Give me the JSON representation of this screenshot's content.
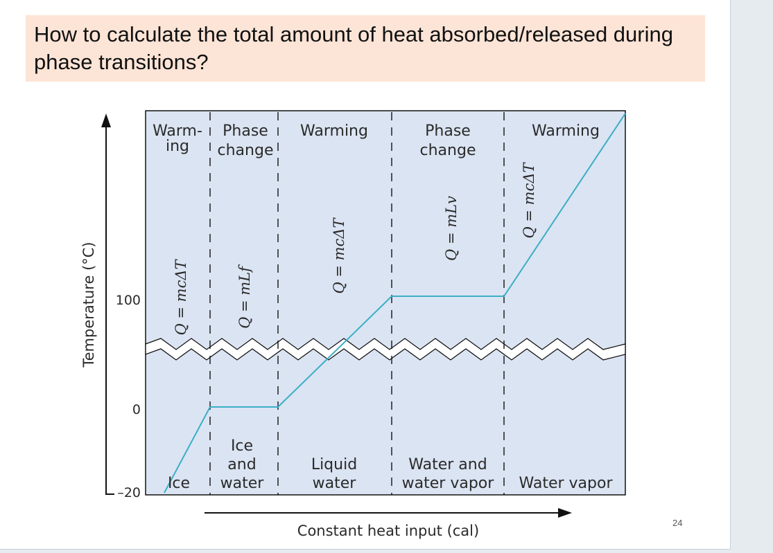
{
  "slide": {
    "title": "How to calculate the total amount of heat absorbed/released during phase transitions?",
    "page_number": "24"
  },
  "diagram": {
    "y_axis_label": "Temperature (°C)",
    "x_axis_label": "Constant heat input (cal)",
    "y_ticks": [
      "100",
      "0",
      "–20"
    ],
    "regions": [
      {
        "top_label_line1": "Warm-",
        "top_label_line2": "ing",
        "formula": "Q = mcΔT",
        "bottom_line1": "",
        "bottom_line2": "",
        "bottom_line3": "Ice"
      },
      {
        "top_label_line1": "Phase",
        "top_label_line2": "change",
        "formula": "Q = mLf",
        "bottom_line1": "Ice",
        "bottom_line2": "and",
        "bottom_line3": "water"
      },
      {
        "top_label_line1": "Warming",
        "top_label_line2": "",
        "formula": "Q = mcΔT",
        "bottom_line1": "",
        "bottom_line2": "Liquid",
        "bottom_line3": "water"
      },
      {
        "top_label_line1": "Phase",
        "top_label_line2": "change",
        "formula": "Q = mLv",
        "bottom_line1": "",
        "bottom_line2": "Water and",
        "bottom_line3": "water vapor"
      },
      {
        "top_label_line1": "Warming",
        "top_label_line2": "",
        "formula": "Q = mcΔT",
        "bottom_line1": "",
        "bottom_line2": "",
        "bottom_line3": "Water vapor"
      }
    ],
    "colors": {
      "background": "#dbe4f2",
      "curve": "#3aaec6",
      "axis": "#111111"
    }
  }
}
